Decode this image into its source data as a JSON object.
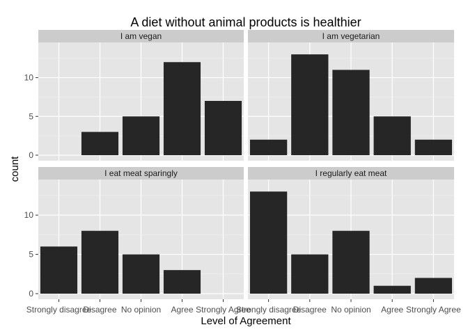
{
  "chart_data": {
    "type": "bar",
    "title": "A diet without animal products is healthier",
    "xlabel": "Level of Agreement",
    "ylabel": "count",
    "categories": [
      "Strongly disagree",
      "Disagree",
      "No opinion",
      "Agree",
      "Strongly Agree"
    ],
    "ylim": [
      0,
      14
    ],
    "yticks": [
      0,
      5,
      10
    ],
    "grid": true,
    "bar_color": "#262626",
    "panel_bg": "#e5e5e5",
    "strip_bg": "#cccccc",
    "facets": [
      {
        "name": "I am vegan",
        "values": [
          0,
          3,
          5,
          12,
          7
        ]
      },
      {
        "name": "I am vegetarian",
        "values": [
          2,
          13,
          11,
          5,
          2
        ]
      },
      {
        "name": "I eat meat sparingly",
        "values": [
          6,
          8,
          5,
          3,
          0
        ]
      },
      {
        "name": "I regularly eat meat",
        "values": [
          13,
          5,
          8,
          1,
          2
        ]
      }
    ]
  }
}
